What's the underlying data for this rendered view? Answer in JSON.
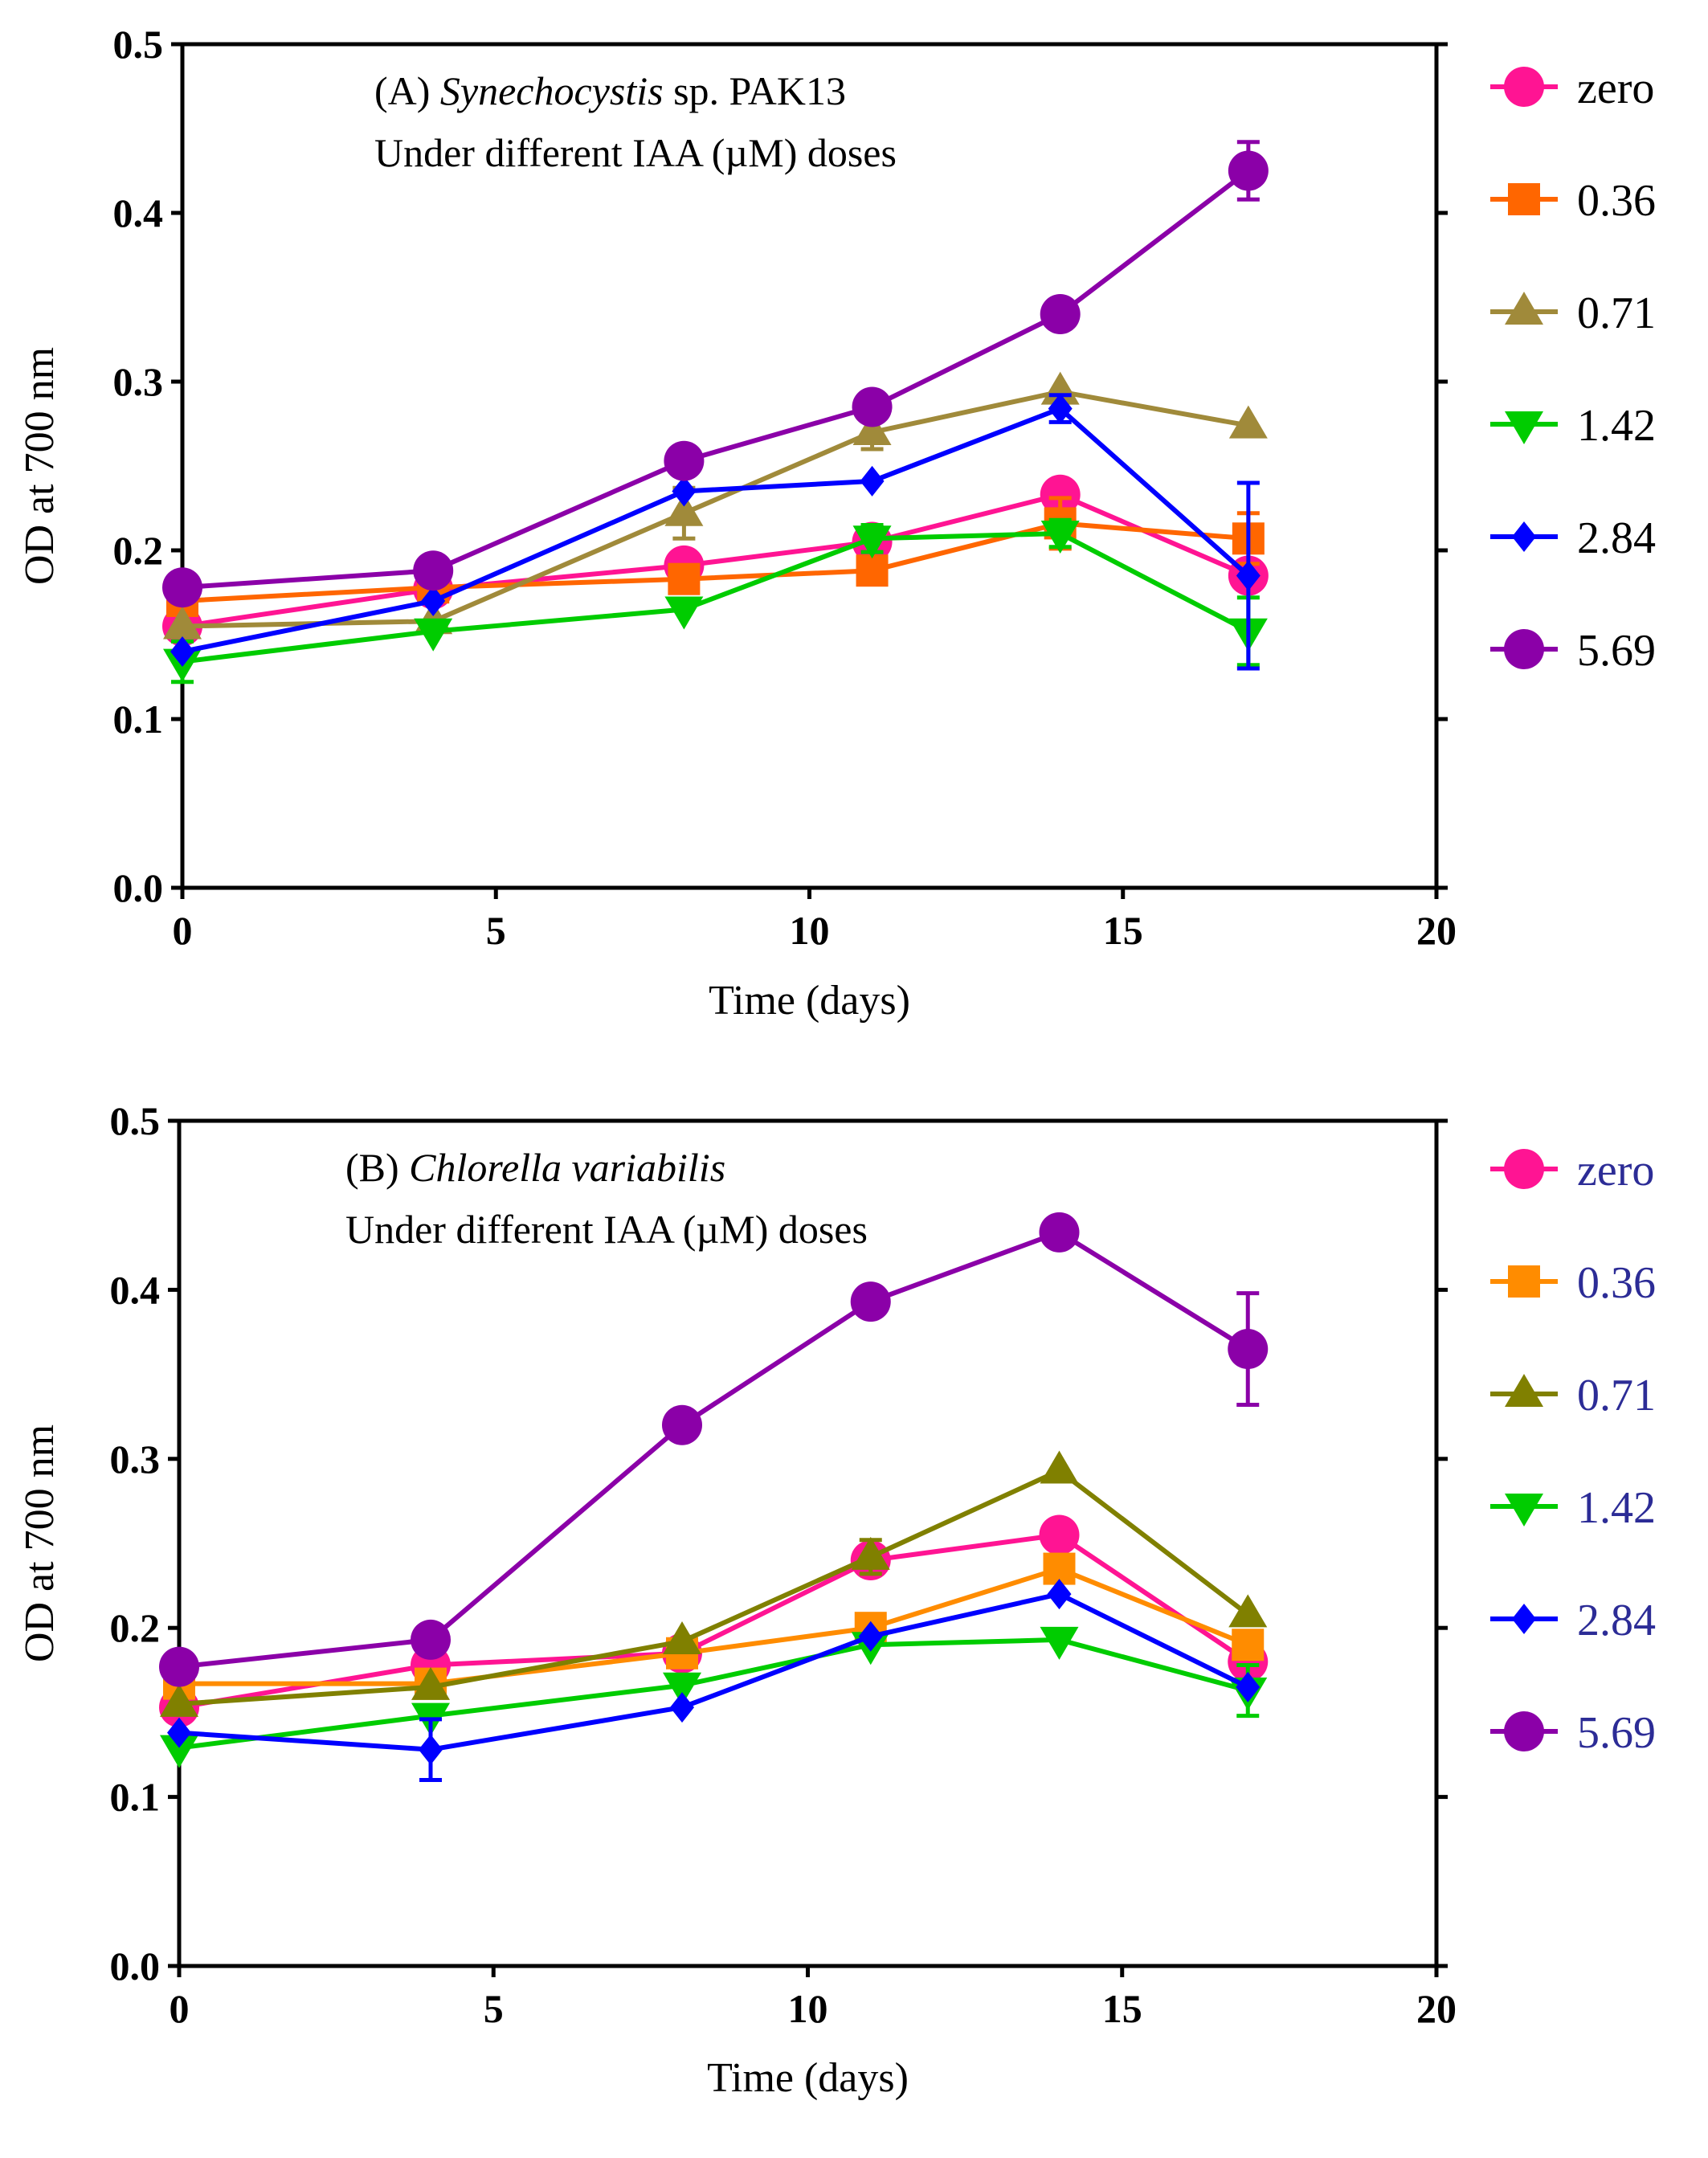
{
  "chart_data": [
    {
      "type": "line",
      "panel": "A",
      "title_parts": [
        "(A) ",
        "Synechocystis",
        " sp. PAK13"
      ],
      "subtitle": "Under different IAA (µM) doses",
      "xlabel": "Time (days)",
      "ylabel": "OD at 700 nm",
      "xlim": [
        0,
        20
      ],
      "ylim": [
        0,
        0.5
      ],
      "xticks": [
        "0",
        "5",
        "10",
        "15",
        "20"
      ],
      "yticks": [
        "0.0",
        "0.1",
        "0.2",
        "0.3",
        "0.4",
        "0.5"
      ],
      "legend_position": "right",
      "legend_text_color": "#000000",
      "x": [
        0,
        4,
        8,
        11,
        14,
        17
      ],
      "series": [
        {
          "name": "zero",
          "color": "#ff1493",
          "marker": "circle",
          "values": [
            0.155,
            0.177,
            0.191,
            0.205,
            0.233,
            0.185
          ],
          "err": [
            0.005,
            0.005,
            0.005,
            0.005,
            0.005,
            0.008
          ]
        },
        {
          "name": "0.36",
          "color": "#ff6600",
          "marker": "square",
          "values": [
            0.17,
            0.178,
            0.183,
            0.188,
            0.216,
            0.207
          ],
          "err": [
            0.005,
            0.005,
            0.005,
            0.005,
            0.015,
            0.015
          ]
        },
        {
          "name": "0.71",
          "color": "#a08a3a",
          "marker": "triangle-up",
          "values": [
            0.155,
            0.158,
            0.222,
            0.27,
            0.294,
            0.274
          ],
          "err": [
            0.005,
            0.005,
            0.015,
            0.01,
            0.005,
            0.005
          ]
        },
        {
          "name": "1.42",
          "color": "#00cc00",
          "marker": "triangle-down",
          "values": [
            0.134,
            0.152,
            0.165,
            0.207,
            0.21,
            0.152
          ],
          "err": [
            0.012,
            0.005,
            0.005,
            0.008,
            0.008,
            0.02
          ]
        },
        {
          "name": "2.84",
          "color": "#0000ff",
          "marker": "diamond",
          "values": [
            0.14,
            0.17,
            0.235,
            0.241,
            0.284,
            0.185
          ],
          "err": [
            0.005,
            0.005,
            0.005,
            0.005,
            0.008,
            0.055
          ]
        },
        {
          "name": "5.69",
          "color": "#8b00a8",
          "marker": "circle",
          "values": [
            0.178,
            0.188,
            0.253,
            0.285,
            0.34,
            0.425
          ],
          "err": [
            0.005,
            0.005,
            0.005,
            0.005,
            0.005,
            0.017
          ]
        }
      ]
    },
    {
      "type": "line",
      "panel": "B",
      "title_parts": [
        "(B) ",
        "Chlorella variabilis",
        ""
      ],
      "subtitle": "Under different IAA (µM) doses",
      "xlabel": "Time (days)",
      "ylabel": "OD at 700 nm",
      "xlim": [
        0,
        20
      ],
      "ylim": [
        0,
        0.5
      ],
      "xticks": [
        "0",
        "5",
        "10",
        "15",
        "20"
      ],
      "yticks": [
        "0.0",
        "0.1",
        "0.2",
        "0.3",
        "0.4",
        "0.5"
      ],
      "legend_position": "right",
      "legend_text_color": "#2c2c96",
      "x": [
        0,
        4,
        8,
        11,
        14,
        17
      ],
      "series": [
        {
          "name": "zero",
          "color": "#ff1493",
          "marker": "circle",
          "values": [
            0.153,
            0.178,
            0.185,
            0.24,
            0.255,
            0.18
          ],
          "err": [
            0.005,
            0.005,
            0.005,
            0.005,
            0.005,
            0.005
          ]
        },
        {
          "name": "0.36",
          "color": "#ff8c00",
          "marker": "square",
          "values": [
            0.167,
            0.167,
            0.185,
            0.2,
            0.235,
            0.19
          ],
          "err": [
            0.005,
            0.005,
            0.005,
            0.005,
            0.005,
            0.005
          ]
        },
        {
          "name": "0.71",
          "color": "#808000",
          "marker": "triangle-up",
          "values": [
            0.155,
            0.165,
            0.192,
            0.242,
            0.293,
            0.208
          ],
          "err": [
            0.005,
            0.005,
            0.005,
            0.01,
            0.005,
            0.005
          ]
        },
        {
          "name": "1.42",
          "color": "#00cc00",
          "marker": "triangle-down",
          "values": [
            0.129,
            0.148,
            0.166,
            0.19,
            0.193,
            0.163
          ],
          "err": [
            0.005,
            0.005,
            0.005,
            0.005,
            0.005,
            0.015
          ]
        },
        {
          "name": "2.84",
          "color": "#0000ff",
          "marker": "diamond",
          "values": [
            0.138,
            0.128,
            0.153,
            0.195,
            0.22,
            0.165
          ],
          "err": [
            0.005,
            0.018,
            0.005,
            0.005,
            0.005,
            0.005
          ]
        },
        {
          "name": "5.69",
          "color": "#8b00a8",
          "marker": "circle",
          "values": [
            0.177,
            0.193,
            0.32,
            0.393,
            0.434,
            0.365
          ],
          "err": [
            0.005,
            0.005,
            0.005,
            0.005,
            0.005,
            0.033
          ]
        }
      ]
    }
  ]
}
